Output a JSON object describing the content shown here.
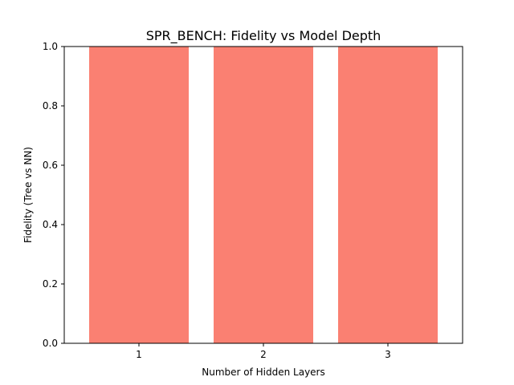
{
  "chart_data": {
    "type": "bar",
    "title": "SPR_BENCH: Fidelity vs Model Depth",
    "xlabel": "Number of Hidden Layers",
    "ylabel": "Fidelity (Tree vs NN)",
    "categories": [
      "1",
      "2",
      "3"
    ],
    "values": [
      1.0,
      1.0,
      1.0
    ],
    "ylim": [
      0,
      1.0
    ],
    "yticks": [
      "0.0",
      "0.2",
      "0.4",
      "0.6",
      "0.8",
      "1.0"
    ],
    "bar_color": "#fa8072",
    "grid": false,
    "legend": "none"
  }
}
